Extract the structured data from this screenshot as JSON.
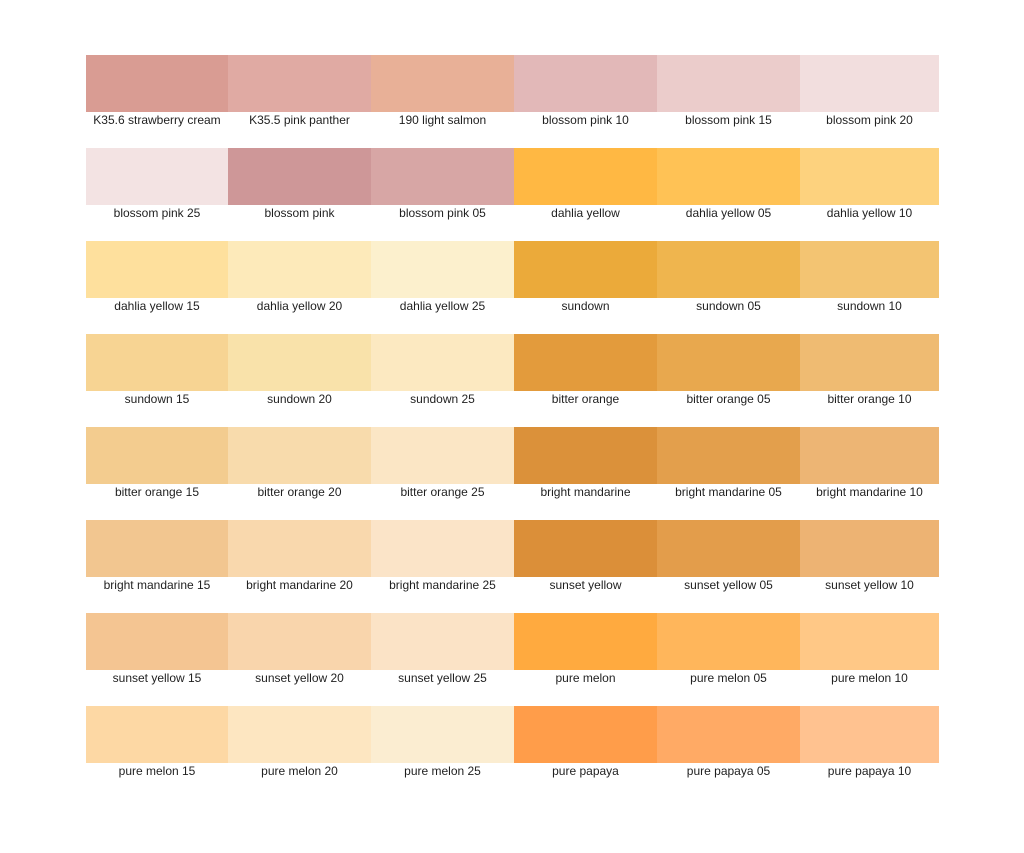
{
  "swatches": [
    {
      "name": "K35.6 strawberry cream",
      "color": "#D99C93"
    },
    {
      "name": "K35.5 pink panther",
      "color": "#E0AAA3"
    },
    {
      "name": "190 light salmon",
      "color": "#E8B097"
    },
    {
      "name": "blossom pink 10",
      "color": "#E2B8B8"
    },
    {
      "name": "blossom pink 15",
      "color": "#EBCCCB"
    },
    {
      "name": "blossom pink 20",
      "color": "#F2DEDE"
    },
    {
      "name": "blossom pink 25",
      "color": "#F3E3E3"
    },
    {
      "name": "blossom pink",
      "color": "#CE9798"
    },
    {
      "name": "blossom pink 05",
      "color": "#D7A6A5"
    },
    {
      "name": "dahlia yellow",
      "color": "#FFB843"
    },
    {
      "name": "dahlia yellow 05",
      "color": "#FFC255"
    },
    {
      "name": "dahlia yellow 10",
      "color": "#FDD27E"
    },
    {
      "name": "dahlia yellow 15",
      "color": "#FEE09D"
    },
    {
      "name": "dahlia yellow 20",
      "color": "#FDEABA"
    },
    {
      "name": "dahlia yellow 25",
      "color": "#FCF0CD"
    },
    {
      "name": "sundown",
      "color": "#EBAA3A"
    },
    {
      "name": "sundown 05",
      "color": "#EFB54E"
    },
    {
      "name": "sundown 10",
      "color": "#F3C472"
    },
    {
      "name": "sundown 15",
      "color": "#F7D493"
    },
    {
      "name": "sundown 20",
      "color": "#F9E2AA"
    },
    {
      "name": "sundown 25",
      "color": "#FCE9C1"
    },
    {
      "name": "bitter orange",
      "color": "#E39B3C"
    },
    {
      "name": "bitter orange 05",
      "color": "#E8A84E"
    },
    {
      "name": "bitter orange 10",
      "color": "#EFBB72"
    },
    {
      "name": "bitter orange 15",
      "color": "#F3CC8F"
    },
    {
      "name": "bitter orange 20",
      "color": "#F8DBAC"
    },
    {
      "name": "bitter orange 25",
      "color": "#FBE6C5"
    },
    {
      "name": "bright mandarine",
      "color": "#DB913A"
    },
    {
      "name": "bright mandarine 05",
      "color": "#E39F4C"
    },
    {
      "name": "bright mandarine 10",
      "color": "#EDB574"
    },
    {
      "name": "bright mandarine 15",
      "color": "#F2C690"
    },
    {
      "name": "bright mandarine 20",
      "color": "#F9D8AD"
    },
    {
      "name": "bright mandarine 25",
      "color": "#FBE4C8"
    },
    {
      "name": "sunset yellow",
      "color": "#DB8F39"
    },
    {
      "name": "sunset yellow 05",
      "color": "#E39D4B"
    },
    {
      "name": "sunset yellow 10",
      "color": "#EDB373"
    },
    {
      "name": "sunset yellow 15",
      "color": "#F4C592"
    },
    {
      "name": "sunset yellow 20",
      "color": "#F9D5AC"
    },
    {
      "name": "sunset yellow 25",
      "color": "#FBE3C6"
    },
    {
      "name": "pure melon",
      "color": "#FFAA3F"
    },
    {
      "name": "pure melon 05",
      "color": "#FFB65B"
    },
    {
      "name": "pure melon 10",
      "color": "#FFC886"
    },
    {
      "name": "pure melon 15",
      "color": "#FDD8A4"
    },
    {
      "name": "pure melon 20",
      "color": "#FDE6C1"
    },
    {
      "name": "pure melon 25",
      "color": "#FBEDD1"
    },
    {
      "name": "pure papaya",
      "color": "#FF9D4A"
    },
    {
      "name": "pure papaya 05",
      "color": "#FFAA65"
    },
    {
      "name": "pure papaya 10",
      "color": "#FFC290"
    }
  ]
}
